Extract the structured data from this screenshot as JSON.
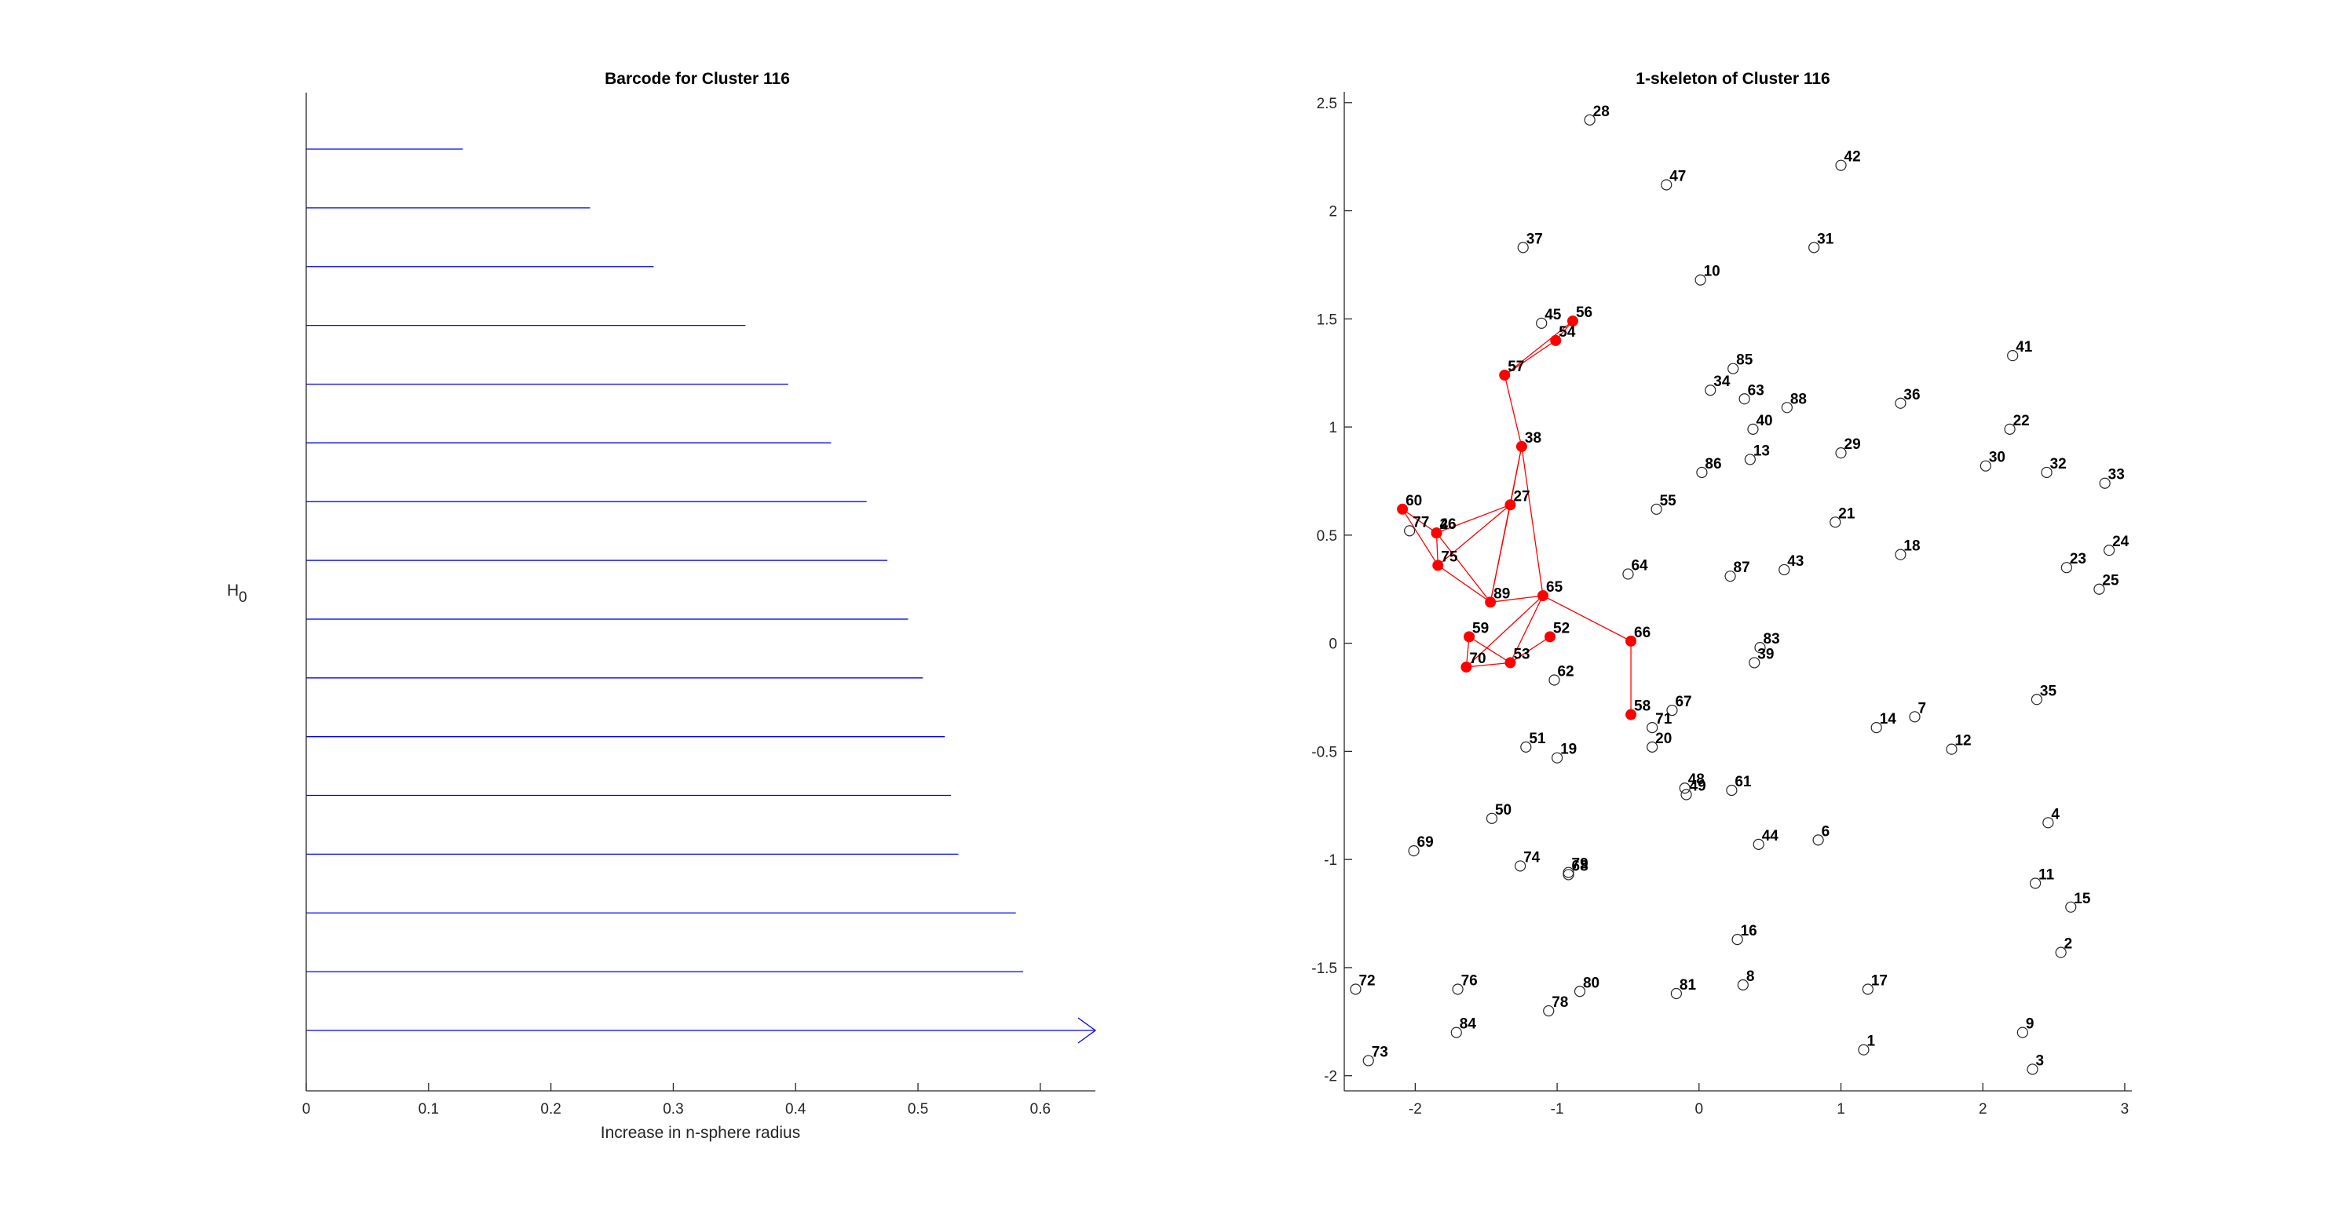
{
  "chart_data": [
    {
      "type": "barcode",
      "title": "Barcode for Cluster 116",
      "xlabel": "Increase in n-sphere radius",
      "ylabel_main": "H",
      "ylabel_sub": "0",
      "xlim": [
        0,
        0.645
      ],
      "xticks": [
        0,
        0.1,
        0.2,
        0.3,
        0.4,
        0.5,
        0.6
      ],
      "xtick_labels": [
        "0",
        "0.1",
        "0.2",
        "0.3",
        "0.4",
        "0.5",
        "0.6"
      ],
      "bar_color": "#0000ff",
      "bars": [
        {
          "start": 0,
          "end": 0.128
        },
        {
          "start": 0,
          "end": 0.232
        },
        {
          "start": 0,
          "end": 0.284
        },
        {
          "start": 0,
          "end": 0.359
        },
        {
          "start": 0,
          "end": 0.394
        },
        {
          "start": 0,
          "end": 0.429
        },
        {
          "start": 0,
          "end": 0.458
        },
        {
          "start": 0,
          "end": 0.475
        },
        {
          "start": 0,
          "end": 0.492
        },
        {
          "start": 0,
          "end": 0.504
        },
        {
          "start": 0,
          "end": 0.522
        },
        {
          "start": 0,
          "end": 0.527
        },
        {
          "start": 0,
          "end": 0.533
        },
        {
          "start": 0,
          "end": 0.58
        },
        {
          "start": 0,
          "end": 0.586
        },
        {
          "start": 0,
          "end": 0.645,
          "infinite": true
        }
      ]
    },
    {
      "type": "scatter",
      "title": "1-skeleton of Cluster 116",
      "xlim": [
        -2.5,
        3.05
      ],
      "ylim": [
        -2.07,
        2.55
      ],
      "xticks": [
        -2,
        -1,
        0,
        1,
        2,
        3
      ],
      "xtick_labels": [
        "-2",
        "-1",
        "0",
        "1",
        "2",
        "3"
      ],
      "yticks": [
        -2,
        -1.5,
        -1,
        -0.5,
        0,
        0.5,
        1,
        1.5,
        2,
        2.5
      ],
      "ytick_labels": [
        "-2",
        "-1.5",
        "-1",
        "-0.5",
        "0",
        "0.5",
        "1",
        "1.5",
        "2",
        "2.5"
      ],
      "edge_color": "#ff0000",
      "points": [
        {
          "id": "1",
          "x": 1.16,
          "y": -1.88,
          "cluster": false
        },
        {
          "id": "2",
          "x": 2.55,
          "y": -1.43,
          "cluster": false
        },
        {
          "id": "3",
          "x": 2.35,
          "y": -1.97,
          "cluster": false
        },
        {
          "id": "4",
          "x": 2.46,
          "y": -0.83,
          "cluster": false
        },
        {
          "id": "6",
          "x": 0.84,
          "y": -0.91,
          "cluster": false
        },
        {
          "id": "7",
          "x": 1.52,
          "y": -0.34,
          "cluster": false
        },
        {
          "id": "8",
          "x": 0.31,
          "y": -1.58,
          "cluster": false
        },
        {
          "id": "9",
          "x": 2.28,
          "y": -1.8,
          "cluster": false
        },
        {
          "id": "10",
          "x": 0.01,
          "y": 1.68,
          "cluster": false
        },
        {
          "id": "11",
          "x": 2.37,
          "y": -1.11,
          "cluster": false
        },
        {
          "id": "12",
          "x": 1.78,
          "y": -0.49,
          "cluster": false
        },
        {
          "id": "13",
          "x": 0.36,
          "y": 0.85,
          "cluster": false
        },
        {
          "id": "14",
          "x": 1.25,
          "y": -0.39,
          "cluster": false
        },
        {
          "id": "15",
          "x": 2.62,
          "y": -1.22,
          "cluster": false
        },
        {
          "id": "16",
          "x": 0.27,
          "y": -1.37,
          "cluster": false
        },
        {
          "id": "17",
          "x": 1.19,
          "y": -1.6,
          "cluster": false
        },
        {
          "id": "18",
          "x": 1.42,
          "y": 0.41,
          "cluster": false
        },
        {
          "id": "19",
          "x": -1.0,
          "y": -0.53,
          "cluster": false
        },
        {
          "id": "20",
          "x": -0.33,
          "y": -0.48,
          "cluster": false
        },
        {
          "id": "21",
          "x": 0.96,
          "y": 0.56,
          "cluster": false
        },
        {
          "id": "23",
          "x": 2.59,
          "y": 0.35,
          "cluster": false
        },
        {
          "id": "24",
          "x": 2.89,
          "y": 0.43,
          "cluster": false
        },
        {
          "id": "25",
          "x": 2.82,
          "y": 0.25,
          "cluster": false
        },
        {
          "id": "28",
          "x": -0.77,
          "y": 2.42,
          "cluster": false
        },
        {
          "id": "29",
          "x": 1.0,
          "y": 0.88,
          "cluster": false
        },
        {
          "id": "30",
          "x": 2.02,
          "y": 0.82,
          "cluster": false
        },
        {
          "id": "31",
          "x": 0.81,
          "y": 1.83,
          "cluster": false
        },
        {
          "id": "32",
          "x": 2.45,
          "y": 0.79,
          "cluster": false
        },
        {
          "id": "33",
          "x": 2.86,
          "y": 0.74,
          "cluster": false
        },
        {
          "id": "34",
          "x": 0.08,
          "y": 1.17,
          "cluster": false
        },
        {
          "id": "35",
          "x": 2.38,
          "y": -0.26,
          "cluster": false
        },
        {
          "id": "36",
          "x": 1.42,
          "y": 1.11,
          "cluster": false
        },
        {
          "id": "37",
          "x": -1.24,
          "y": 1.83,
          "cluster": false
        },
        {
          "id": "39",
          "x": 0.39,
          "y": -0.09,
          "cluster": false
        },
        {
          "id": "40",
          "x": 0.38,
          "y": 0.99,
          "cluster": false
        },
        {
          "id": "41",
          "x": 2.21,
          "y": 1.33,
          "cluster": false
        },
        {
          "id": "42",
          "x": 1.0,
          "y": 2.21,
          "cluster": false
        },
        {
          "id": "43",
          "x": 0.6,
          "y": 0.34,
          "cluster": false
        },
        {
          "id": "44",
          "x": 0.42,
          "y": -0.93,
          "cluster": false
        },
        {
          "id": "45",
          "x": -1.11,
          "y": 1.48,
          "cluster": false
        },
        {
          "id": "47",
          "x": -0.23,
          "y": 2.12,
          "cluster": false
        },
        {
          "id": "48",
          "x": -0.1,
          "y": -0.67,
          "cluster": false
        },
        {
          "id": "49",
          "x": -0.09,
          "y": -0.7,
          "cluster": false
        },
        {
          "id": "50",
          "x": -1.46,
          "y": -0.81,
          "cluster": false
        },
        {
          "id": "51",
          "x": -1.22,
          "y": -0.48,
          "cluster": false
        },
        {
          "id": "55",
          "x": -0.3,
          "y": 0.62,
          "cluster": false
        },
        {
          "id": "61",
          "x": 0.23,
          "y": -0.68,
          "cluster": false
        },
        {
          "id": "62",
          "x": -1.02,
          "y": -0.17,
          "cluster": false
        },
        {
          "id": "63",
          "x": 0.32,
          "y": 1.13,
          "cluster": false
        },
        {
          "id": "64",
          "x": -0.5,
          "y": 0.32,
          "cluster": false
        },
        {
          "id": "67",
          "x": -0.19,
          "y": -0.31,
          "cluster": false
        },
        {
          "id": "68",
          "x": -0.92,
          "y": -1.07,
          "cluster": false
        },
        {
          "id": "69",
          "x": -2.01,
          "y": -0.96,
          "cluster": false
        },
        {
          "id": "71",
          "x": -0.33,
          "y": -0.39,
          "cluster": false
        },
        {
          "id": "72",
          "x": -2.42,
          "y": -1.6,
          "cluster": false
        },
        {
          "id": "73",
          "x": -2.33,
          "y": -1.93,
          "cluster": false
        },
        {
          "id": "74",
          "x": -1.26,
          "y": -1.03,
          "cluster": false
        },
        {
          "id": "76",
          "x": -1.7,
          "y": -1.6,
          "cluster": false
        },
        {
          "id": "77",
          "x": -2.04,
          "y": 0.52,
          "cluster": false
        },
        {
          "id": "78",
          "x": -1.06,
          "y": -1.7,
          "cluster": false
        },
        {
          "id": "79",
          "x": -0.92,
          "y": -1.06,
          "cluster": false
        },
        {
          "id": "80",
          "x": -0.84,
          "y": -1.61,
          "cluster": false
        },
        {
          "id": "81",
          "x": -0.16,
          "y": -1.62,
          "cluster": false
        },
        {
          "id": "83",
          "x": 0.43,
          "y": -0.02,
          "cluster": false
        },
        {
          "id": "84",
          "x": -1.71,
          "y": -1.8,
          "cluster": false
        },
        {
          "id": "85",
          "x": 0.24,
          "y": 1.27,
          "cluster": false
        },
        {
          "id": "86",
          "x": 0.02,
          "y": 0.79,
          "cluster": false
        },
        {
          "id": "87",
          "x": 0.22,
          "y": 0.31,
          "cluster": false
        },
        {
          "id": "88",
          "x": 0.62,
          "y": 1.09,
          "cluster": false
        },
        {
          "id": "22",
          "x": 2.19,
          "y": 0.99,
          "cluster": false
        },
        {
          "id": "26",
          "x": -1.85,
          "y": 0.51,
          "cluster": true
        },
        {
          "id": "27",
          "x": -1.33,
          "y": 0.64,
          "cluster": true
        },
        {
          "id": "38",
          "x": -1.25,
          "y": 0.91,
          "cluster": true
        },
        {
          "id": "46",
          "x": -1.85,
          "y": 0.51,
          "cluster": true
        },
        {
          "id": "52",
          "x": -1.05,
          "y": 0.03,
          "cluster": true
        },
        {
          "id": "53",
          "x": -1.33,
          "y": -0.09,
          "cluster": true
        },
        {
          "id": "54",
          "x": -1.01,
          "y": 1.4,
          "cluster": true
        },
        {
          "id": "56",
          "x": -0.89,
          "y": 1.49,
          "cluster": true
        },
        {
          "id": "57",
          "x": -1.37,
          "y": 1.24,
          "cluster": true
        },
        {
          "id": "58",
          "x": -0.48,
          "y": -0.33,
          "cluster": true
        },
        {
          "id": "59",
          "x": -1.62,
          "y": 0.03,
          "cluster": true
        },
        {
          "id": "60",
          "x": -2.09,
          "y": 0.62,
          "cluster": true
        },
        {
          "id": "65",
          "x": -1.1,
          "y": 0.22,
          "cluster": true
        },
        {
          "id": "66",
          "x": -0.48,
          "y": 0.01,
          "cluster": true
        },
        {
          "id": "70",
          "x": -1.64,
          "y": -0.11,
          "cluster": true
        },
        {
          "id": "75",
          "x": -1.84,
          "y": 0.36,
          "cluster": true
        },
        {
          "id": "89",
          "x": -1.47,
          "y": 0.19,
          "cluster": true
        }
      ],
      "edges": [
        [
          "56",
          "54"
        ],
        [
          "56",
          "57"
        ],
        [
          "54",
          "57"
        ],
        [
          "57",
          "38"
        ],
        [
          "38",
          "27"
        ],
        [
          "38",
          "89"
        ],
        [
          "38",
          "65"
        ],
        [
          "27",
          "26"
        ],
        [
          "27",
          "75"
        ],
        [
          "27",
          "89"
        ],
        [
          "60",
          "26"
        ],
        [
          "60",
          "75"
        ],
        [
          "26",
          "75"
        ],
        [
          "26",
          "89"
        ],
        [
          "75",
          "89"
        ],
        [
          "65",
          "89"
        ],
        [
          "65",
          "53"
        ],
        [
          "65",
          "66"
        ],
        [
          "66",
          "58"
        ],
        [
          "59",
          "70"
        ],
        [
          "59",
          "53"
        ],
        [
          "52",
          "53"
        ],
        [
          "70",
          "53"
        ],
        [
          "70",
          "65"
        ]
      ]
    }
  ]
}
